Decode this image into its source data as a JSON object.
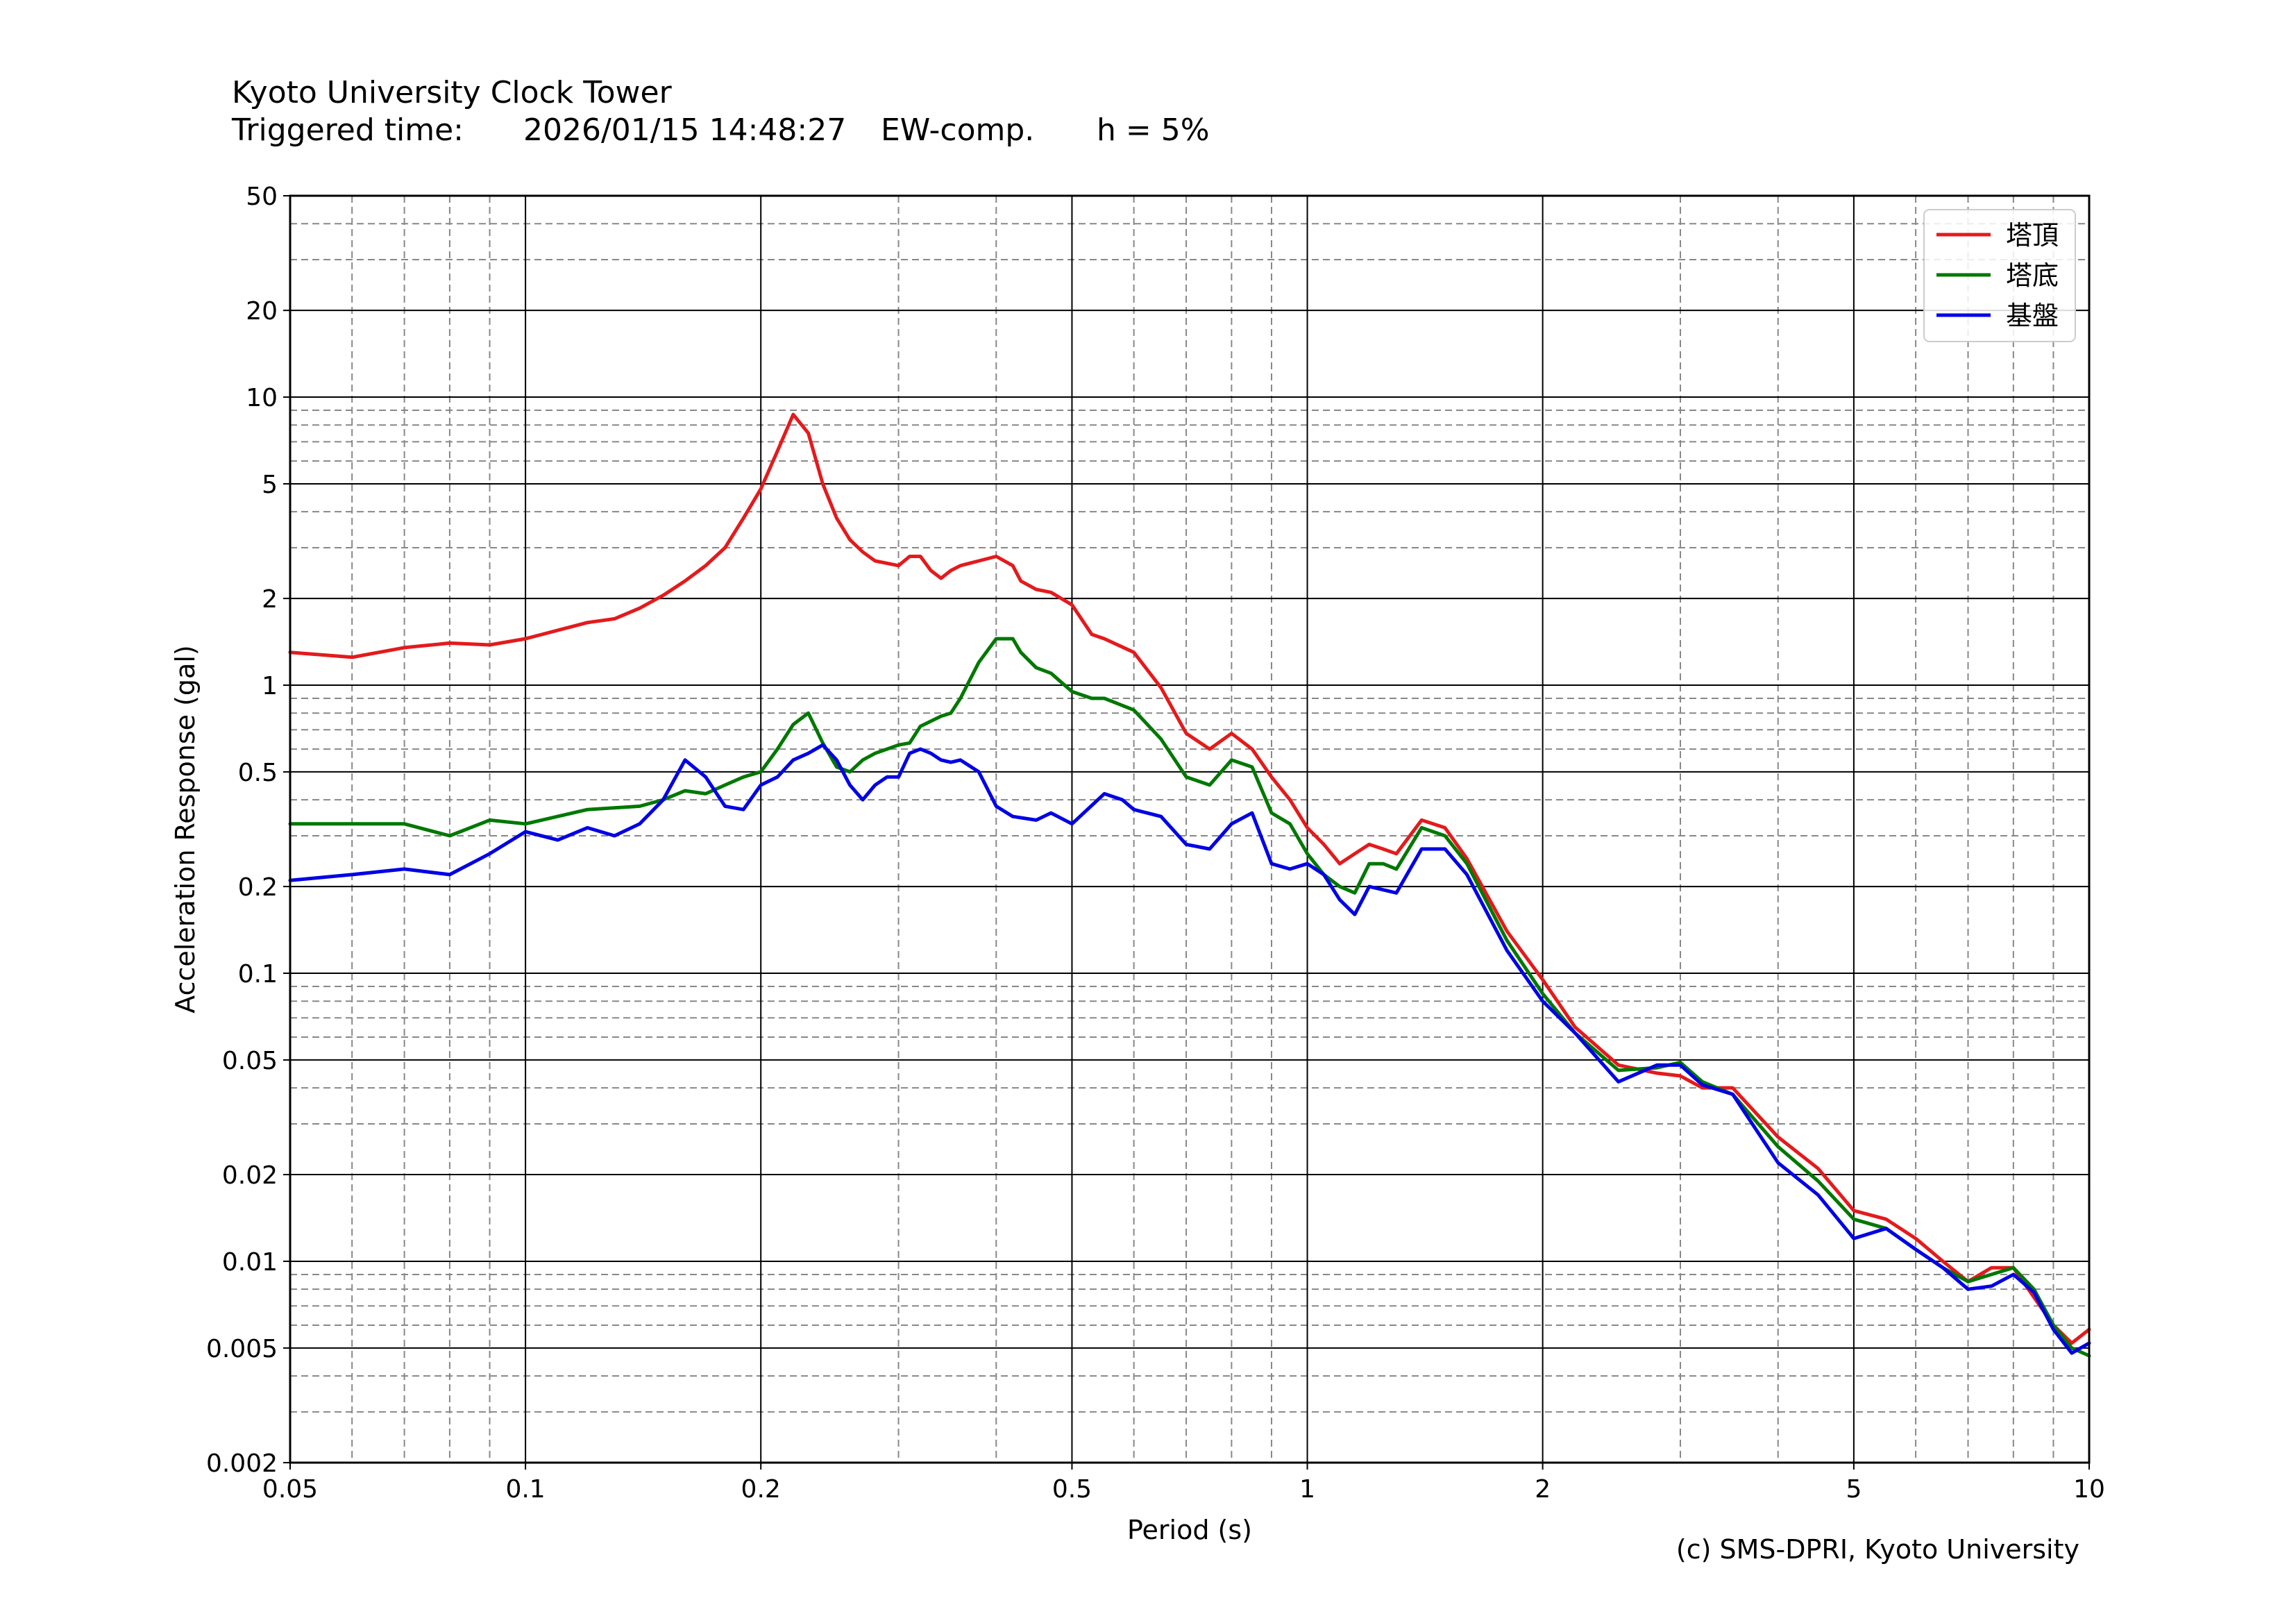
{
  "header": {
    "title": "Kyoto University Clock Tower",
    "trigger_label": "Triggered time:",
    "trigger_time": "2026/01/15 14:48:27",
    "component": "EW-comp.",
    "damping": "h = 5%"
  },
  "footer": {
    "copyright": "(c) SMS-DPRI, Kyoto University"
  },
  "chart_data": {
    "type": "line",
    "xlabel": "Period (s)",
    "ylabel": "Acceleration Response (gal)",
    "xscale": "log",
    "yscale": "log",
    "xlim": [
      0.05,
      10
    ],
    "ylim": [
      0.002,
      50
    ],
    "xticks": [
      0.05,
      0.1,
      0.2,
      0.5,
      1,
      2,
      5,
      10
    ],
    "xtick_labels": [
      "0.05",
      "0.1",
      "0.2",
      "0.5",
      "1",
      "2",
      "5",
      "10"
    ],
    "yticks": [
      0.002,
      0.005,
      0.01,
      0.02,
      0.05,
      0.1,
      0.2,
      0.5,
      1,
      2,
      5,
      10,
      20,
      50
    ],
    "ytick_labels": [
      "0.002",
      "0.005",
      "0.01",
      "0.02",
      "0.05",
      "0.1",
      "0.2",
      "0.5",
      "1",
      "2",
      "5",
      "10",
      "20",
      "50"
    ],
    "grid": true,
    "legend_position": "top-right",
    "series": [
      {
        "name": "塔頂",
        "color": "#e41a1c",
        "x": [
          0.05,
          0.06,
          0.07,
          0.08,
          0.09,
          0.1,
          0.12,
          0.13,
          0.14,
          0.15,
          0.16,
          0.17,
          0.18,
          0.19,
          0.2,
          0.21,
          0.22,
          0.23,
          0.24,
          0.25,
          0.26,
          0.27,
          0.28,
          0.3,
          0.31,
          0.32,
          0.33,
          0.34,
          0.35,
          0.36,
          0.38,
          0.4,
          0.42,
          0.43,
          0.45,
          0.47,
          0.5,
          0.53,
          0.55,
          0.6,
          0.65,
          0.7,
          0.75,
          0.8,
          0.85,
          0.9,
          0.95,
          1,
          1.05,
          1.1,
          1.15,
          1.2,
          1.25,
          1.3,
          1.4,
          1.5,
          1.6,
          1.8,
          2,
          2.2,
          2.5,
          2.8,
          3,
          3.2,
          3.5,
          4,
          4.5,
          5,
          5.5,
          6,
          6.5,
          7,
          7.5,
          8,
          8.5,
          9,
          9.5,
          10
        ],
        "y": [
          1.3,
          1.25,
          1.35,
          1.4,
          1.38,
          1.45,
          1.65,
          1.7,
          1.85,
          2.05,
          2.3,
          2.6,
          3.0,
          3.8,
          4.8,
          6.5,
          8.7,
          7.5,
          5.0,
          3.8,
          3.2,
          2.9,
          2.7,
          2.6,
          2.8,
          2.8,
          2.5,
          2.35,
          2.5,
          2.6,
          2.7,
          2.8,
          2.6,
          2.3,
          2.15,
          2.1,
          1.9,
          1.5,
          1.45,
          1.3,
          0.98,
          0.68,
          0.6,
          0.68,
          0.6,
          0.48,
          0.4,
          0.32,
          0.28,
          0.24,
          0.26,
          0.28,
          0.27,
          0.26,
          0.34,
          0.32,
          0.25,
          0.14,
          0.095,
          0.065,
          0.048,
          0.045,
          0.044,
          0.04,
          0.04,
          0.027,
          0.021,
          0.015,
          0.014,
          0.012,
          0.01,
          0.0085,
          0.0095,
          0.0095,
          0.0075,
          0.006,
          0.0052,
          0.0058
        ]
      },
      {
        "name": "塔底",
        "color": "#007800",
        "x": [
          0.05,
          0.06,
          0.07,
          0.08,
          0.09,
          0.1,
          0.12,
          0.14,
          0.15,
          0.16,
          0.17,
          0.18,
          0.19,
          0.2,
          0.21,
          0.22,
          0.23,
          0.24,
          0.25,
          0.26,
          0.27,
          0.28,
          0.3,
          0.31,
          0.32,
          0.33,
          0.34,
          0.35,
          0.36,
          0.38,
          0.4,
          0.42,
          0.43,
          0.45,
          0.47,
          0.5,
          0.53,
          0.55,
          0.6,
          0.65,
          0.7,
          0.75,
          0.8,
          0.85,
          0.9,
          0.95,
          1,
          1.05,
          1.1,
          1.15,
          1.2,
          1.25,
          1.3,
          1.4,
          1.5,
          1.6,
          1.8,
          2,
          2.2,
          2.5,
          2.8,
          3,
          3.2,
          3.5,
          4,
          4.5,
          5,
          5.5,
          6,
          6.5,
          7,
          7.5,
          8,
          8.5,
          9,
          9.5,
          10
        ],
        "y": [
          0.33,
          0.33,
          0.33,
          0.3,
          0.34,
          0.33,
          0.37,
          0.38,
          0.4,
          0.43,
          0.42,
          0.45,
          0.48,
          0.5,
          0.6,
          0.73,
          0.8,
          0.63,
          0.52,
          0.5,
          0.55,
          0.58,
          0.62,
          0.63,
          0.72,
          0.75,
          0.78,
          0.8,
          0.9,
          1.2,
          1.45,
          1.45,
          1.3,
          1.15,
          1.1,
          0.95,
          0.9,
          0.9,
          0.82,
          0.65,
          0.48,
          0.45,
          0.55,
          0.52,
          0.36,
          0.33,
          0.26,
          0.22,
          0.2,
          0.19,
          0.24,
          0.24,
          0.23,
          0.32,
          0.3,
          0.24,
          0.13,
          0.085,
          0.062,
          0.046,
          0.047,
          0.049,
          0.042,
          0.038,
          0.025,
          0.019,
          0.014,
          0.013,
          0.011,
          0.0095,
          0.0085,
          0.009,
          0.0095,
          0.008,
          0.006,
          0.005,
          0.0047
        ]
      },
      {
        "name": "基盤",
        "color": "#0000e6",
        "x": [
          0.05,
          0.06,
          0.07,
          0.08,
          0.09,
          0.1,
          0.11,
          0.12,
          0.13,
          0.14,
          0.15,
          0.16,
          0.17,
          0.18,
          0.19,
          0.2,
          0.21,
          0.22,
          0.23,
          0.24,
          0.25,
          0.26,
          0.27,
          0.28,
          0.29,
          0.3,
          0.31,
          0.32,
          0.33,
          0.34,
          0.35,
          0.36,
          0.38,
          0.4,
          0.42,
          0.45,
          0.47,
          0.5,
          0.55,
          0.58,
          0.6,
          0.65,
          0.7,
          0.75,
          0.8,
          0.85,
          0.9,
          0.95,
          1,
          1.05,
          1.1,
          1.15,
          1.2,
          1.3,
          1.4,
          1.5,
          1.6,
          1.8,
          2,
          2.2,
          2.5,
          2.8,
          3,
          3.2,
          3.5,
          4,
          4.5,
          5,
          5.5,
          6,
          6.5,
          7,
          7.5,
          8,
          8.5,
          9,
          9.5,
          10
        ],
        "y": [
          0.21,
          0.22,
          0.23,
          0.22,
          0.26,
          0.31,
          0.29,
          0.32,
          0.3,
          0.33,
          0.4,
          0.55,
          0.48,
          0.38,
          0.37,
          0.45,
          0.48,
          0.55,
          0.58,
          0.62,
          0.55,
          0.45,
          0.4,
          0.45,
          0.48,
          0.48,
          0.58,
          0.6,
          0.58,
          0.55,
          0.54,
          0.55,
          0.5,
          0.38,
          0.35,
          0.34,
          0.36,
          0.33,
          0.42,
          0.4,
          0.37,
          0.35,
          0.28,
          0.27,
          0.33,
          0.36,
          0.24,
          0.23,
          0.24,
          0.22,
          0.18,
          0.16,
          0.2,
          0.19,
          0.27,
          0.27,
          0.22,
          0.12,
          0.08,
          0.062,
          0.042,
          0.048,
          0.048,
          0.041,
          0.038,
          0.022,
          0.017,
          0.012,
          0.013,
          0.011,
          0.0095,
          0.008,
          0.0082,
          0.009,
          0.0078,
          0.0058,
          0.0048,
          0.0052
        ]
      }
    ]
  }
}
